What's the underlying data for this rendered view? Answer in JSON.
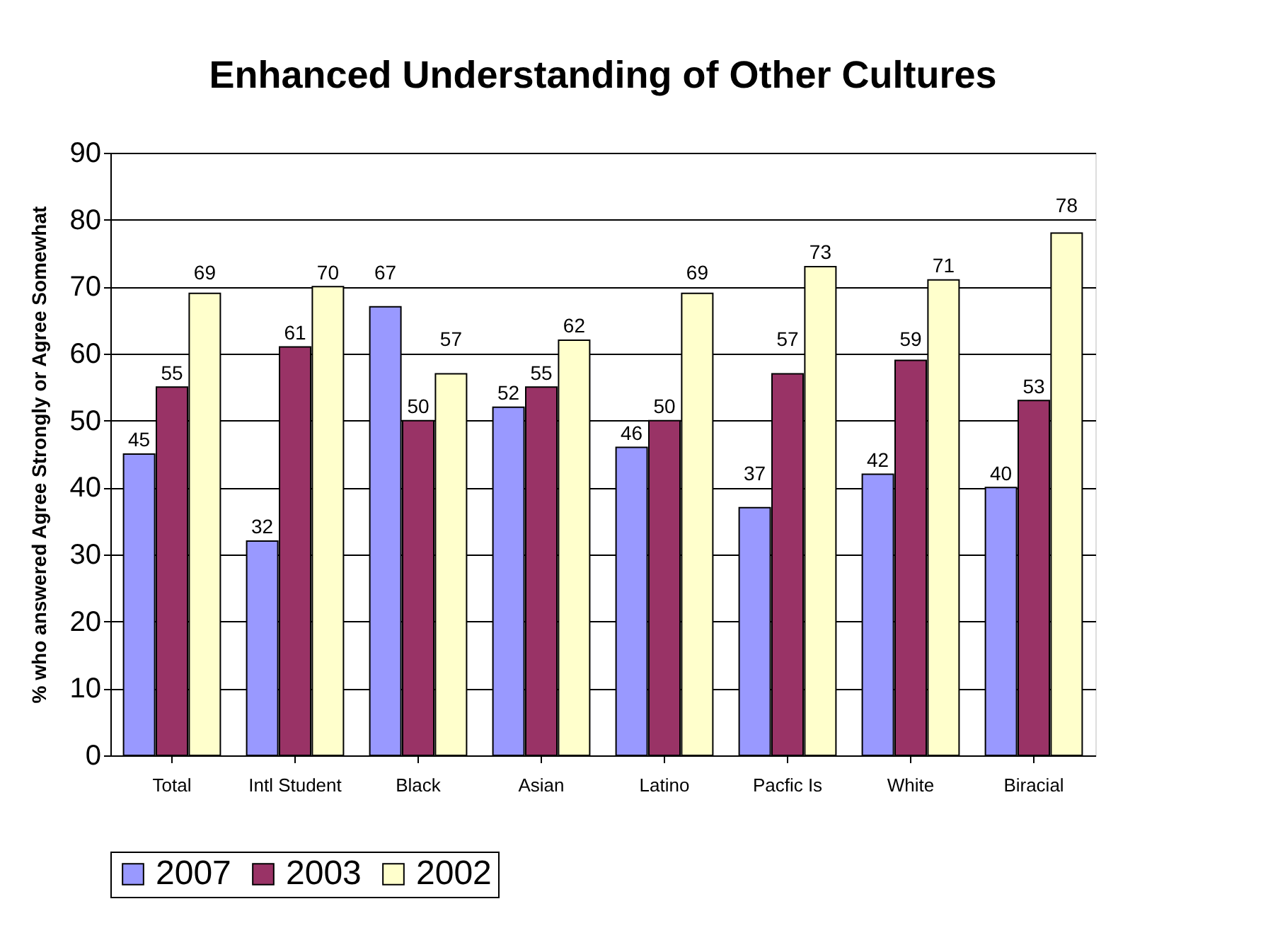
{
  "chart_data": {
    "type": "bar",
    "title": "Enhanced Understanding of Other Cultures",
    "ylabel": "% who answered Agree Strongly or Agree Somewhat",
    "categories": [
      "Total",
      "Intl Student",
      "Black",
      "Asian",
      "Latino",
      "Pacfic Is",
      "White",
      "Biracial"
    ],
    "series": [
      {
        "name": "2007",
        "color": "#9999ff",
        "values": [
          45,
          32,
          67,
          52,
          46,
          37,
          42,
          40
        ]
      },
      {
        "name": "2003",
        "color": "#993366",
        "values": [
          55,
          61,
          50,
          55,
          50,
          57,
          59,
          53
        ]
      },
      {
        "name": "2002",
        "color": "#ffffcc",
        "values": [
          69,
          70,
          57,
          62,
          69,
          73,
          71,
          78
        ]
      }
    ],
    "ylim": [
      0,
      90
    ],
    "yticks": [
      0,
      10,
      20,
      30,
      40,
      50,
      60,
      70,
      80,
      90
    ],
    "grid": "y",
    "legend": "bottom",
    "data_labels": true
  }
}
